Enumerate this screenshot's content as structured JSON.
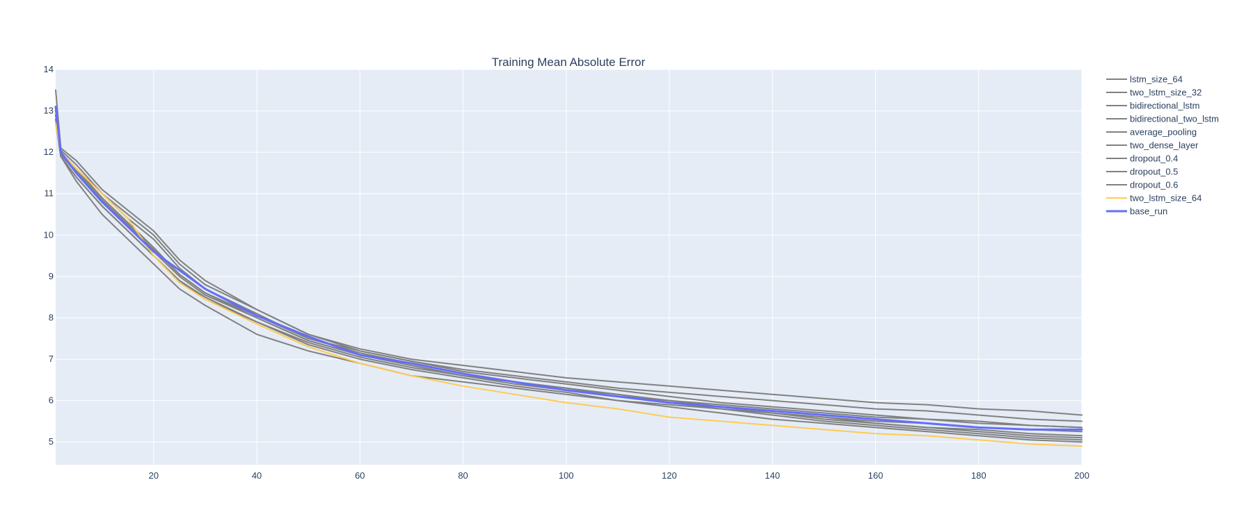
{
  "chart_data": {
    "type": "line",
    "title": "Training Mean Absolute Error",
    "xlabel": "",
    "ylabel": "",
    "xlim": [
      1,
      200
    ],
    "ylim": [
      4.45,
      14
    ],
    "x_ticks": [
      20,
      40,
      60,
      80,
      100,
      120,
      140,
      160,
      180,
      200
    ],
    "y_ticks": [
      5,
      6,
      7,
      8,
      9,
      10,
      11,
      12,
      13,
      14
    ],
    "grid": true,
    "legend_position": "right",
    "colors": {
      "plot_bg": "#e5ecf6",
      "grid": "#ffffff",
      "highlight": "#636efa",
      "secondary": "#fecb52",
      "muted": "#808080"
    },
    "x": [
      1,
      2,
      5,
      10,
      15,
      20,
      25,
      30,
      40,
      50,
      60,
      70,
      80,
      90,
      100,
      110,
      120,
      130,
      140,
      150,
      160,
      170,
      180,
      190,
      200
    ],
    "series": [
      {
        "name": "lstm_size_64",
        "color": "#808080",
        "width": 2,
        "values": [
          13.5,
          12.1,
          11.8,
          11.1,
          10.6,
          10.1,
          9.4,
          8.9,
          8.2,
          7.6,
          7.25,
          7.0,
          6.85,
          6.7,
          6.55,
          6.45,
          6.35,
          6.25,
          6.15,
          6.05,
          5.95,
          5.9,
          5.8,
          5.75,
          5.65
        ]
      },
      {
        "name": "two_lstm_size_32",
        "color": "#808080",
        "width": 2,
        "values": [
          12.9,
          12.0,
          11.6,
          11.0,
          10.4,
          9.9,
          9.2,
          8.7,
          8.1,
          7.5,
          7.2,
          6.95,
          6.75,
          6.6,
          6.45,
          6.3,
          6.2,
          6.1,
          6.0,
          5.9,
          5.8,
          5.75,
          5.65,
          5.55,
          5.5
        ]
      },
      {
        "name": "bidirectional_lstm",
        "color": "#808080",
        "width": 2,
        "values": [
          12.8,
          11.9,
          11.4,
          10.7,
          10.1,
          9.5,
          8.9,
          8.5,
          7.9,
          7.4,
          7.05,
          6.8,
          6.6,
          6.4,
          6.25,
          6.1,
          6.0,
          5.9,
          5.8,
          5.7,
          5.6,
          5.55,
          5.45,
          5.4,
          5.35
        ]
      },
      {
        "name": "bidirectional_two_lstm",
        "color": "#808080",
        "width": 2,
        "values": [
          12.7,
          11.9,
          11.3,
          10.5,
          9.9,
          9.3,
          8.7,
          8.3,
          7.6,
          7.2,
          6.9,
          6.6,
          6.45,
          6.3,
          6.15,
          6.0,
          5.9,
          5.8,
          5.7,
          5.6,
          5.5,
          5.45,
          5.35,
          5.3,
          5.25
        ]
      },
      {
        "name": "average_pooling",
        "color": "#808080",
        "width": 2,
        "values": [
          12.9,
          11.95,
          11.5,
          10.8,
          10.2,
          9.6,
          9.0,
          8.55,
          8.0,
          7.45,
          7.1,
          6.85,
          6.6,
          6.45,
          6.3,
          6.15,
          5.95,
          5.85,
          5.7,
          5.6,
          5.45,
          5.35,
          5.25,
          5.15,
          5.1
        ]
      },
      {
        "name": "two_dense_layer",
        "color": "#808080",
        "width": 2,
        "values": [
          13.0,
          12.0,
          11.6,
          10.9,
          10.3,
          9.7,
          9.05,
          8.6,
          8.05,
          7.5,
          7.15,
          6.9,
          6.65,
          6.45,
          6.3,
          6.1,
          5.95,
          5.8,
          5.65,
          5.5,
          5.4,
          5.3,
          5.2,
          5.1,
          5.05
        ]
      },
      {
        "name": "dropout_0.4",
        "color": "#808080",
        "width": 2,
        "values": [
          12.8,
          11.9,
          11.4,
          10.7,
          10.1,
          9.5,
          8.9,
          8.45,
          7.9,
          7.35,
          7.0,
          6.75,
          6.55,
          6.35,
          6.2,
          6.0,
          5.85,
          5.7,
          5.55,
          5.45,
          5.35,
          5.25,
          5.15,
          5.05,
          5.0
        ]
      },
      {
        "name": "dropout_0.5",
        "color": "#808080",
        "width": 2,
        "values": [
          12.9,
          12.0,
          11.55,
          10.85,
          10.25,
          9.65,
          9.05,
          8.6,
          8.0,
          7.45,
          7.1,
          6.85,
          6.6,
          6.45,
          6.3,
          6.15,
          6.0,
          5.85,
          5.7,
          5.55,
          5.45,
          5.35,
          5.3,
          5.2,
          5.15
        ]
      },
      {
        "name": "dropout_0.6",
        "color": "#808080",
        "width": 2,
        "values": [
          13.1,
          12.05,
          11.7,
          11.0,
          10.5,
          10.0,
          9.3,
          8.8,
          8.2,
          7.6,
          7.2,
          6.95,
          6.7,
          6.55,
          6.4,
          6.25,
          6.1,
          5.95,
          5.85,
          5.75,
          5.65,
          5.55,
          5.5,
          5.4,
          5.35
        ]
      },
      {
        "name": "two_lstm_size_64",
        "color": "#fecb52",
        "width": 2,
        "values": [
          12.7,
          12.0,
          11.6,
          11.0,
          10.4,
          9.5,
          8.85,
          8.45,
          7.85,
          7.3,
          6.9,
          6.6,
          6.35,
          6.15,
          5.95,
          5.8,
          5.6,
          5.5,
          5.4,
          5.3,
          5.2,
          5.15,
          5.05,
          4.95,
          4.9
        ]
      },
      {
        "name": "base_run",
        "color": "#636efa",
        "width": 3,
        "values": [
          13.1,
          12.0,
          11.5,
          10.8,
          10.2,
          9.6,
          9.15,
          8.7,
          8.05,
          7.55,
          7.1,
          6.9,
          6.65,
          6.45,
          6.25,
          6.1,
          5.95,
          5.85,
          5.75,
          5.65,
          5.55,
          5.45,
          5.35,
          5.3,
          5.3
        ]
      }
    ]
  }
}
